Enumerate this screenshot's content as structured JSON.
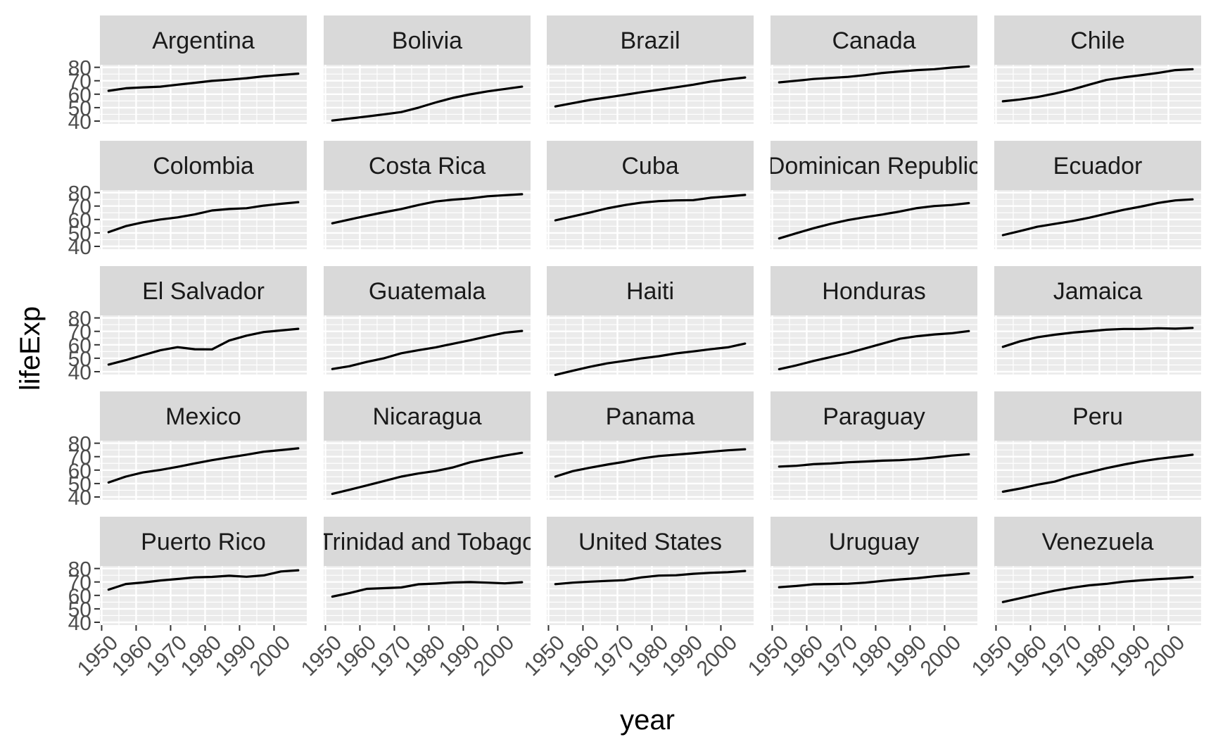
{
  "chart_data": {
    "type": "line",
    "xlabel": "year",
    "ylabel": "lifeExp",
    "xlim": [
      1949.5,
      2009.5
    ],
    "ylim": [
      37.9,
      81.9
    ],
    "x_ticks": [
      1950,
      1960,
      1970,
      1980,
      1990,
      2000
    ],
    "y_ticks": [
      40,
      50,
      60,
      70,
      80
    ],
    "x": [
      1952,
      1957,
      1962,
      1967,
      1972,
      1977,
      1982,
      1987,
      1992,
      1997,
      2002,
      2007
    ],
    "series": [
      {
        "name": "Argentina",
        "values": [
          62.5,
          64.4,
          65.1,
          65.6,
          67.1,
          68.5,
          69.9,
          70.8,
          71.9,
          73.3,
          74.3,
          75.3
        ]
      },
      {
        "name": "Bolivia",
        "values": [
          40.4,
          41.9,
          43.4,
          45.0,
          46.7,
          50.0,
          53.9,
          57.3,
          59.9,
          62.1,
          63.9,
          65.6
        ]
      },
      {
        "name": "Brazil",
        "values": [
          50.9,
          53.3,
          55.7,
          57.6,
          59.5,
          61.5,
          63.3,
          65.2,
          67.1,
          69.4,
          71.0,
          72.4
        ]
      },
      {
        "name": "Canada",
        "values": [
          68.8,
          70.0,
          71.3,
          72.1,
          72.9,
          74.2,
          75.8,
          76.9,
          77.9,
          78.6,
          79.8,
          80.7
        ]
      },
      {
        "name": "Chile",
        "values": [
          54.7,
          56.1,
          57.9,
          60.5,
          63.4,
          67.1,
          70.6,
          72.5,
          74.1,
          75.8,
          77.9,
          78.6
        ]
      },
      {
        "name": "Colombia",
        "values": [
          50.6,
          55.1,
          57.9,
          60.0,
          61.6,
          63.8,
          66.7,
          67.8,
          68.4,
          70.3,
          71.7,
          72.9
        ]
      },
      {
        "name": "Costa Rica",
        "values": [
          57.2,
          60.0,
          62.8,
          65.4,
          67.8,
          70.8,
          73.4,
          74.8,
          75.7,
          77.3,
          78.1,
          78.8
        ]
      },
      {
        "name": "Cuba",
        "values": [
          59.4,
          62.3,
          65.2,
          68.3,
          70.7,
          72.6,
          73.7,
          74.2,
          74.4,
          76.2,
          77.2,
          78.3
        ]
      },
      {
        "name": "Dominican Republic",
        "values": [
          45.9,
          49.8,
          53.5,
          56.8,
          59.6,
          61.8,
          63.7,
          66.0,
          68.5,
          70.0,
          70.8,
          72.2
        ]
      },
      {
        "name": "Ecuador",
        "values": [
          48.4,
          51.4,
          54.6,
          56.7,
          58.8,
          61.3,
          64.3,
          67.2,
          69.6,
          72.3,
          74.2,
          74.99
        ]
      },
      {
        "name": "El Salvador",
        "values": [
          45.3,
          48.6,
          52.3,
          55.9,
          58.2,
          56.7,
          56.6,
          63.2,
          66.8,
          69.5,
          70.7,
          71.9
        ]
      },
      {
        "name": "Guatemala",
        "values": [
          42.0,
          44.1,
          47.3,
          50.0,
          53.7,
          56.0,
          58.1,
          60.8,
          63.4,
          66.3,
          68.98,
          70.3
        ]
      },
      {
        "name": "Haiti",
        "values": [
          37.6,
          40.7,
          43.6,
          46.2,
          48.0,
          49.9,
          51.5,
          53.6,
          55.1,
          56.7,
          58.1,
          60.9
        ]
      },
      {
        "name": "Honduras",
        "values": [
          41.9,
          44.7,
          48.0,
          50.9,
          53.9,
          57.4,
          60.9,
          64.5,
          66.4,
          67.7,
          68.6,
          70.2
        ]
      },
      {
        "name": "Jamaica",
        "values": [
          58.5,
          62.6,
          65.6,
          67.5,
          69.0,
          70.1,
          71.2,
          71.8,
          71.8,
          72.3,
          72.0,
          72.6
        ]
      },
      {
        "name": "Mexico",
        "values": [
          50.8,
          55.2,
          58.3,
          60.1,
          62.4,
          65.0,
          67.4,
          69.5,
          71.5,
          73.7,
          74.9,
          76.2
        ]
      },
      {
        "name": "Nicaragua",
        "values": [
          42.3,
          45.4,
          48.6,
          51.9,
          55.2,
          57.5,
          59.3,
          62.0,
          65.8,
          68.4,
          70.8,
          72.9
        ]
      },
      {
        "name": "Panama",
        "values": [
          55.2,
          59.2,
          61.8,
          64.1,
          66.2,
          68.7,
          70.5,
          71.5,
          72.5,
          73.7,
          74.7,
          75.5
        ]
      },
      {
        "name": "Paraguay",
        "values": [
          62.6,
          63.2,
          64.4,
          64.95,
          65.8,
          66.4,
          67.0,
          67.4,
          68.2,
          69.4,
          70.8,
          71.8
        ]
      },
      {
        "name": "Peru",
        "values": [
          43.9,
          46.3,
          49.1,
          51.4,
          55.4,
          58.4,
          61.4,
          64.1,
          66.5,
          68.4,
          69.9,
          71.4
        ]
      },
      {
        "name": "Puerto Rico",
        "values": [
          64.3,
          68.5,
          69.6,
          71.1,
          72.2,
          73.4,
          73.8,
          74.6,
          73.9,
          74.9,
          77.8,
          78.7
        ]
      },
      {
        "name": "Trinidad and Tobago",
        "values": [
          59.1,
          61.8,
          64.9,
          65.4,
          65.9,
          68.3,
          68.8,
          69.6,
          69.9,
          69.5,
          68.98,
          69.8
        ]
      },
      {
        "name": "United States",
        "values": [
          68.4,
          69.5,
          70.2,
          70.8,
          71.3,
          73.4,
          74.7,
          75.0,
          76.1,
          76.8,
          77.3,
          78.2
        ]
      },
      {
        "name": "Uruguay",
        "values": [
          66.1,
          67.0,
          68.3,
          68.5,
          68.7,
          69.5,
          70.8,
          71.9,
          72.8,
          74.2,
          75.3,
          76.4
        ]
      },
      {
        "name": "Venezuela",
        "values": [
          55.1,
          57.9,
          60.8,
          63.5,
          65.7,
          67.5,
          68.6,
          70.2,
          71.2,
          72.1,
          72.8,
          73.7
        ]
      }
    ]
  }
}
